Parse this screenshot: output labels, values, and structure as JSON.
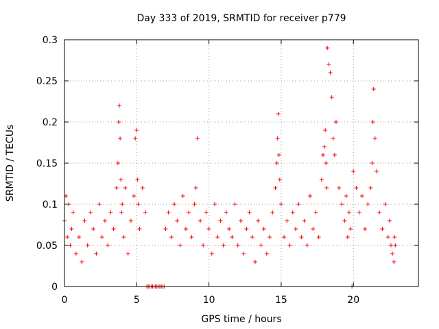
{
  "chart_data": {
    "type": "scatter",
    "title": "Day 333 of 2019, SRMTID for receiver p779",
    "xlabel": "GPS time / hours",
    "ylabel": "SRMTID / TECUs",
    "xlim": [
      0,
      24.5
    ],
    "ylim": [
      0,
      0.3
    ],
    "x_ticks": [
      0,
      5,
      10,
      15,
      20
    ],
    "x_tick_labels": [
      "0",
      "5",
      "10",
      "15",
      "20"
    ],
    "y_ticks": [
      0,
      0.05,
      0.1,
      0.15,
      0.2,
      0.25,
      0.3
    ],
    "y_tick_labels": [
      "0",
      "0.05",
      "0.1",
      "0.15",
      "0.2",
      "0.25",
      "0.3"
    ],
    "grid": true,
    "marker": "+",
    "color": "#ff0000",
    "series": [
      {
        "name": "SRMTID",
        "x": [
          0.0,
          0.1,
          0.2,
          0.3,
          0.4,
          0.5,
          0.6,
          0.8,
          1.0,
          1.2,
          1.4,
          1.6,
          1.8,
          2.0,
          2.2,
          2.4,
          2.6,
          2.8,
          3.0,
          3.2,
          3.4,
          3.6,
          3.7,
          3.75,
          3.8,
          3.85,
          3.9,
          3.95,
          4.0,
          4.1,
          4.2,
          4.4,
          4.6,
          4.8,
          4.9,
          5.0,
          5.05,
          5.1,
          5.2,
          5.4,
          5.6,
          5.7,
          5.8,
          5.9,
          6.0,
          6.1,
          6.2,
          6.3,
          6.4,
          6.5,
          6.6,
          6.7,
          6.8,
          6.9,
          7.0,
          7.2,
          7.4,
          7.6,
          7.8,
          8.0,
          8.2,
          8.4,
          8.6,
          8.8,
          9.0,
          9.1,
          9.2,
          9.4,
          9.6,
          9.8,
          10.0,
          10.2,
          10.4,
          10.6,
          10.8,
          11.0,
          11.2,
          11.4,
          11.6,
          11.8,
          12.0,
          12.2,
          12.4,
          12.6,
          12.8,
          13.0,
          13.2,
          13.4,
          13.6,
          13.8,
          14.0,
          14.2,
          14.4,
          14.6,
          14.7,
          14.75,
          14.8,
          14.85,
          14.9,
          15.0,
          15.2,
          15.4,
          15.6,
          15.8,
          16.0,
          16.2,
          16.4,
          16.6,
          16.8,
          17.0,
          17.2,
          17.4,
          17.6,
          17.8,
          17.9,
          18.0,
          18.05,
          18.1,
          18.15,
          18.2,
          18.3,
          18.4,
          18.5,
          18.6,
          18.7,
          18.8,
          19.0,
          19.2,
          19.4,
          19.5,
          19.6,
          19.7,
          19.8,
          19.9,
          20.0,
          20.2,
          20.4,
          20.6,
          20.8,
          21.0,
          21.2,
          21.3,
          21.35,
          21.4,
          21.5,
          21.6,
          21.8,
          22.0,
          22.2,
          22.4,
          22.5,
          22.6,
          22.7,
          22.8,
          22.85,
          22.9
        ],
        "y": [
          0.08,
          0.11,
          0.06,
          0.1,
          0.05,
          0.07,
          0.09,
          0.04,
          0.06,
          0.03,
          0.08,
          0.05,
          0.09,
          0.07,
          0.04,
          0.1,
          0.06,
          0.08,
          0.05,
          0.09,
          0.07,
          0.12,
          0.15,
          0.2,
          0.22,
          0.18,
          0.13,
          0.09,
          0.1,
          0.06,
          0.12,
          0.04,
          0.08,
          0.11,
          0.18,
          0.19,
          0.13,
          0.1,
          0.07,
          0.12,
          0.09,
          0.0,
          0.0,
          0.0,
          0.0,
          0.0,
          0.0,
          0.0,
          0.0,
          0.0,
          0.0,
          0.0,
          0.0,
          0.0,
          0.07,
          0.09,
          0.06,
          0.1,
          0.08,
          0.05,
          0.11,
          0.07,
          0.09,
          0.06,
          0.1,
          0.12,
          0.18,
          0.08,
          0.05,
          0.09,
          0.07,
          0.04,
          0.1,
          0.06,
          0.08,
          0.05,
          0.09,
          0.07,
          0.06,
          0.1,
          0.05,
          0.08,
          0.04,
          0.07,
          0.09,
          0.06,
          0.03,
          0.08,
          0.05,
          0.07,
          0.04,
          0.06,
          0.09,
          0.12,
          0.15,
          0.18,
          0.21,
          0.16,
          0.13,
          0.1,
          0.06,
          0.08,
          0.05,
          0.09,
          0.07,
          0.1,
          0.06,
          0.08,
          0.05,
          0.11,
          0.07,
          0.09,
          0.06,
          0.13,
          0.16,
          0.17,
          0.19,
          0.15,
          0.12,
          0.29,
          0.27,
          0.26,
          0.23,
          0.18,
          0.16,
          0.2,
          0.12,
          0.1,
          0.08,
          0.11,
          0.06,
          0.09,
          0.07,
          0.0,
          0.14,
          0.12,
          0.09,
          0.11,
          0.07,
          0.1,
          0.12,
          0.15,
          0.2,
          0.24,
          0.18,
          0.14,
          0.09,
          0.07,
          0.1,
          0.06,
          0.08,
          0.05,
          0.04,
          0.03,
          0.06,
          0.05
        ]
      }
    ]
  }
}
